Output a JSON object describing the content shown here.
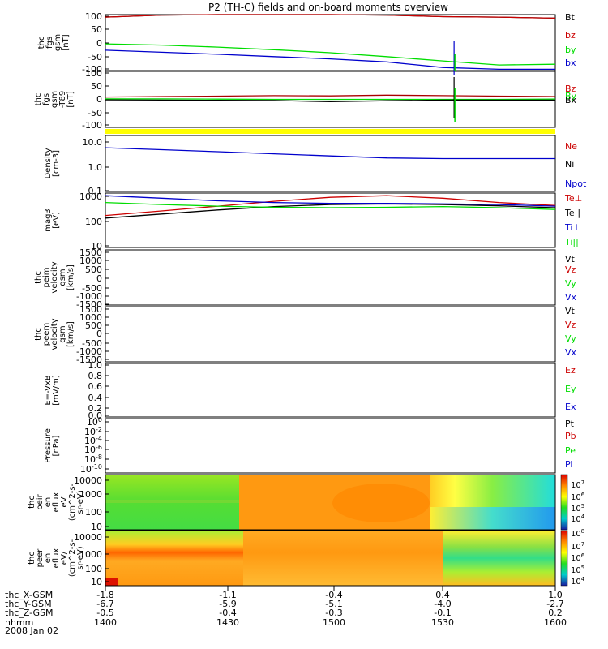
{
  "title": "P2 (TH-C) fields and on-board moments overview",
  "colors": {
    "black": "#000000",
    "red": "#cc0000",
    "green": "#00dd00",
    "blue": "#0000cc",
    "yellow": "#ffff00"
  },
  "panels": [
    {
      "id": "fgs-gsm",
      "ylabel": [
        "thc",
        "fgs",
        "gsm",
        "[nT]"
      ],
      "ticks": [
        "100",
        "50",
        "0",
        "-50",
        "-100"
      ],
      "legend": [
        {
          "text": "Bt",
          "color": "#000000"
        },
        {
          "text": "bz",
          "color": "#cc0000"
        },
        {
          "text": "by",
          "color": "#00dd00"
        },
        {
          "text": "bx",
          "color": "#0000cc"
        }
      ]
    },
    {
      "id": "fgs-gsm-t89",
      "ylabel": [
        "thc",
        "fgs",
        "gsm",
        "-T89",
        "[nT]"
      ],
      "ticks": [
        "100",
        "50",
        "0",
        "-50",
        "-100"
      ],
      "legend": [
        {
          "text": "Bz",
          "color": "#cc0000"
        },
        {
          "text": "By",
          "color": "#00dd00"
        },
        {
          "text": "Bx",
          "color": "#000000"
        }
      ]
    },
    {
      "id": "density",
      "ylabel": [
        "Density",
        "[cm-3]"
      ],
      "ticks": [
        "10.0",
        "1.0",
        "0.1"
      ],
      "legend": [
        {
          "text": "Ne",
          "color": "#cc0000"
        },
        {
          "text": "Ni",
          "color": "#000000"
        },
        {
          "text": "Npot",
          "color": "#0000cc"
        }
      ]
    },
    {
      "id": "temperature",
      "ylabel": [
        "mag3",
        "[eV]"
      ],
      "ticks": [
        "1000",
        "100",
        "10"
      ],
      "legend": [
        {
          "text": "Te⊥",
          "color": "#cc0000"
        },
        {
          "text": "Te||",
          "color": "#000000"
        },
        {
          "text": "Ti⊥",
          "color": "#0000cc"
        },
        {
          "text": "Ti||",
          "color": "#00dd00"
        }
      ]
    },
    {
      "id": "peim-velocity",
      "ylabel": [
        "thc",
        "peim",
        "velocity",
        "gsm",
        "[km/s]"
      ],
      "ticks": [
        "1500",
        "1000",
        "500",
        "0",
        "-500",
        "-1000",
        "-1500"
      ],
      "legend": [
        {
          "text": "Vt",
          "color": "#000000"
        },
        {
          "text": "Vz",
          "color": "#cc0000"
        },
        {
          "text": "Vy",
          "color": "#00dd00"
        },
        {
          "text": "Vx",
          "color": "#0000cc"
        }
      ]
    },
    {
      "id": "peem-velocity",
      "ylabel": [
        "thc",
        "peem",
        "velocity",
        "gsm",
        "[km/s]"
      ],
      "ticks": [
        "1500",
        "1000",
        "500",
        "0",
        "-500",
        "-1000",
        "-1500"
      ],
      "legend": [
        {
          "text": "Vt",
          "color": "#000000"
        },
        {
          "text": "Vz",
          "color": "#cc0000"
        },
        {
          "text": "Vy",
          "color": "#00dd00"
        },
        {
          "text": "Vx",
          "color": "#0000cc"
        }
      ]
    },
    {
      "id": "efield",
      "ylabel": [
        "E=-VxB",
        "[mV/m]"
      ],
      "ticks": [
        "1.0",
        "0.8",
        "0.6",
        "0.4",
        "0.2",
        "0.0"
      ],
      "legend": [
        {
          "text": "Ez",
          "color": "#cc0000"
        },
        {
          "text": "Ey",
          "color": "#00dd00"
        },
        {
          "text": "Ex",
          "color": "#0000cc"
        }
      ]
    },
    {
      "id": "pressure",
      "ylabel": [
        "Pressure",
        "[nPa]"
      ],
      "ticks": [
        "10^0",
        "10^-2",
        "10^-4",
        "10^-6",
        "10^-8",
        "10^-10"
      ],
      "legend": [
        {
          "text": "Pt",
          "color": "#000000"
        },
        {
          "text": "Pb",
          "color": "#cc0000"
        },
        {
          "text": "Pe",
          "color": "#00dd00"
        },
        {
          "text": "Pi",
          "color": "#0000cc"
        }
      ]
    },
    {
      "id": "peir-eflux",
      "ylabel": [
        "thc",
        "peir",
        "en",
        "eflux",
        "eV",
        "(cm^2-s-",
        "sr-eV)"
      ],
      "ticks": [
        "10000",
        "1000",
        "100",
        "10"
      ],
      "colorbar": [
        "10^7",
        "10^6",
        "10^5",
        "10^4"
      ]
    },
    {
      "id": "peer-eflux",
      "ylabel": [
        "thc",
        "peer",
        "en",
        "eflux",
        "eV/",
        "(cm^2-s-",
        "sr-eV)"
      ],
      "ticks": [
        "10000",
        "1000",
        "100",
        "10"
      ],
      "colorbar": [
        "10^8",
        "10^7",
        "10^6",
        "10^5",
        "10^4"
      ]
    }
  ],
  "footer": {
    "labels": [
      "thc_X-GSM",
      "thc_Y-GSM",
      "thc_Z-GSM",
      "hhmm",
      "2008 Jan 02"
    ],
    "rows": [
      [
        "-1.8",
        "-1.1",
        "-0.4",
        "0.4",
        "1.0"
      ],
      [
        "-6.7",
        "-5.9",
        "-5.1",
        "-4.0",
        "-2.7"
      ],
      [
        "-0.5",
        "-0.4",
        "-0.3",
        "-0.1",
        "0.2"
      ],
      [
        "1400",
        "1430",
        "1500",
        "1530",
        "1600"
      ]
    ]
  },
  "chart_data": [
    {
      "type": "line",
      "panel": "fgs-gsm",
      "x": [
        1400,
        1415,
        1430,
        1445,
        1500,
        1515,
        1530,
        1545,
        1600
      ],
      "series": [
        {
          "name": "Bt",
          "values": [
            100,
            108,
            112,
            112,
            110,
            108,
            102,
            100,
            96
          ]
        },
        {
          "name": "bz",
          "values": [
            100,
            108,
            112,
            112,
            110,
            108,
            102,
            100,
            96
          ]
        },
        {
          "name": "by",
          "values": [
            -5,
            -10,
            -18,
            -28,
            -40,
            -55,
            -72,
            -88,
            -85
          ]
        },
        {
          "name": "bx",
          "values": [
            -30,
            -38,
            -46,
            -55,
            -64,
            -76,
            -98,
            -105,
            -105
          ]
        }
      ],
      "ylim": [
        -110,
        110
      ]
    },
    {
      "type": "line",
      "panel": "fgs-gsm-t89",
      "x": [
        1400,
        1415,
        1430,
        1445,
        1500,
        1515,
        1530,
        1545,
        1600
      ],
      "series": [
        {
          "name": "Bz",
          "values": [
            10,
            12,
            14,
            16,
            15,
            18,
            16,
            14,
            12
          ]
        },
        {
          "name": "By",
          "values": [
            2,
            2,
            1,
            0,
            0,
            0,
            0,
            0,
            1
          ]
        },
        {
          "name": "Bx",
          "values": [
            -2,
            -3,
            -4,
            -5,
            -10,
            -6,
            -3,
            -3,
            -3
          ]
        }
      ],
      "ylim": [
        -120,
        120
      ]
    },
    {
      "type": "line",
      "panel": "density",
      "x": [
        1400,
        1415,
        1430,
        1445,
        1500,
        1515,
        1530,
        1545,
        1600
      ],
      "series": [
        {
          "name": "Npot",
          "values": [
            5.0,
            4.2,
            3.5,
            2.9,
            2.4,
            2.0,
            1.9,
            1.9,
            1.9
          ]
        }
      ],
      "ylim": [
        0.1,
        15
      ],
      "yscale": "log"
    },
    {
      "type": "line",
      "panel": "temperature",
      "x": [
        1400,
        1415,
        1430,
        1445,
        1500,
        1515,
        1530,
        1545,
        1600
      ],
      "series": [
        {
          "name": "Te⊥",
          "values": [
            150,
            220,
            330,
            500,
            700,
            800,
            650,
            450,
            350
          ]
        },
        {
          "name": "Te||",
          "values": [
            120,
            170,
            240,
            320,
            380,
            400,
            380,
            340,
            290
          ]
        },
        {
          "name": "Ti⊥",
          "values": [
            800,
            650,
            520,
            450,
            420,
            420,
            400,
            380,
            330
          ]
        },
        {
          "name": "Ti||",
          "values": [
            450,
            380,
            330,
            300,
            290,
            300,
            320,
            290,
            250
          ]
        }
      ],
      "ylim": [
        10,
        1000
      ],
      "yscale": "log"
    },
    {
      "type": "heatmap",
      "panel": "peir-eflux",
      "x": [
        "1400-1437",
        "1437-1525",
        "1525-1600"
      ],
      "ylim": [
        10,
        10000
      ],
      "yscale": "log",
      "zlim": [
        10000,
        10000000
      ]
    },
    {
      "type": "heatmap",
      "panel": "peer-eflux",
      "x": [
        "1400-1437",
        "1437-1537",
        "1537-1600"
      ],
      "ylim": [
        10,
        10000
      ],
      "yscale": "log",
      "zlim": [
        10000,
        100000000
      ]
    }
  ]
}
